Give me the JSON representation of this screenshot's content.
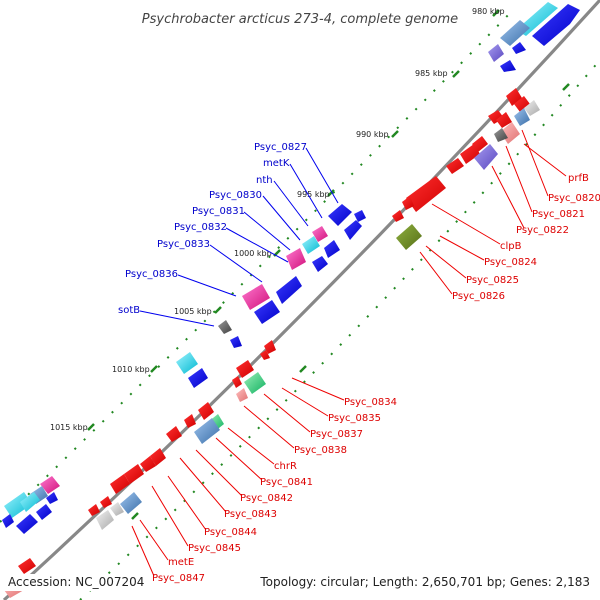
{
  "title": "Psychrobacter arcticus 273-4, complete genome",
  "footer": {
    "accession": "Accession: NC_007204",
    "summary": "Topology: circular; Length: 2,650,701 bp; Genes: 2,183"
  },
  "ticks": [
    {
      "label": "980 kbp"
    },
    {
      "label": "985 kbp"
    },
    {
      "label": "990 kbp"
    },
    {
      "label": "995 kbp"
    },
    {
      "label": "1000 kbp"
    },
    {
      "label": "1005 kbp"
    },
    {
      "label": "1010 kbp"
    },
    {
      "label": "1015 kbp"
    }
  ],
  "blue_labels": [
    {
      "label": "Psyc_0827"
    },
    {
      "label": "metK"
    },
    {
      "label": "nth"
    },
    {
      "label": "Psyc_0830"
    },
    {
      "label": "Psyc_0831"
    },
    {
      "label": "Psyc_0832"
    },
    {
      "label": "Psyc_0833"
    },
    {
      "label": "Psyc_0836"
    },
    {
      "label": "sotB"
    }
  ],
  "red_labels": [
    {
      "label": "prfB"
    },
    {
      "label": "Psyc_0820"
    },
    {
      "label": "Psyc_0821"
    },
    {
      "label": "Psyc_0822"
    },
    {
      "label": "clpB"
    },
    {
      "label": "Psyc_0824"
    },
    {
      "label": "Psyc_0825"
    },
    {
      "label": "Psyc_0826"
    },
    {
      "label": "Psyc_0834"
    },
    {
      "label": "Psyc_0835"
    },
    {
      "label": "Psyc_0837"
    },
    {
      "label": "Psyc_0838"
    },
    {
      "label": "chrR"
    },
    {
      "label": "Psyc_0841"
    },
    {
      "label": "Psyc_0842"
    },
    {
      "label": "Psyc_0843"
    },
    {
      "label": "Psyc_0844"
    },
    {
      "label": "Psyc_0845"
    },
    {
      "label": "metE"
    },
    {
      "label": "Psyc_0847"
    }
  ],
  "colors": {
    "forward_label": "#0000cc",
    "reverse_label": "#dd0000",
    "backbone": "#808080",
    "tick": "#228822"
  }
}
